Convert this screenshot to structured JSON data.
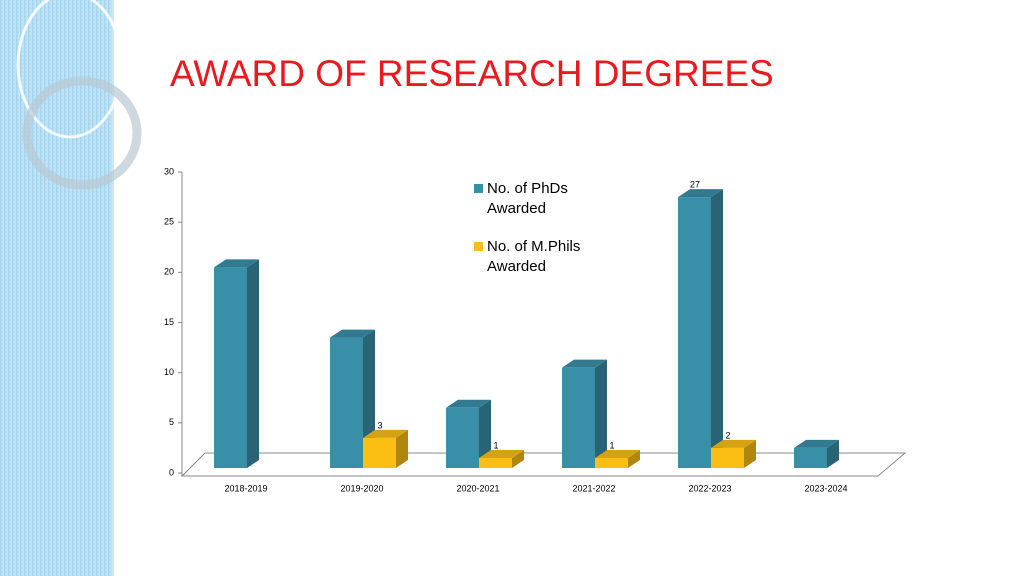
{
  "chart_data": {
    "type": "bar3d",
    "title": "AWARD OF RESEARCH DEGREES",
    "categories": [
      "2018-2019",
      "2019-2020",
      "2020-2021",
      "2021-2022",
      "2022-2023",
      "2023-2024"
    ],
    "series": [
      {
        "name": "No. of PhDs Awarded",
        "color": "#3a8fa8",
        "values": [
          20,
          13,
          6,
          10,
          27,
          2
        ],
        "value_labels": [
          null,
          null,
          null,
          null,
          "27",
          null
        ]
      },
      {
        "name": "No. of M.Phils Awarded",
        "color": "#fbbf14",
        "values": [
          null,
          3,
          1,
          1,
          2,
          null
        ],
        "value_labels": [
          null,
          "3",
          "1",
          "1",
          "2",
          null
        ]
      }
    ],
    "ylim": [
      0,
      30
    ],
    "yticks": [
      0,
      5,
      10,
      15,
      20,
      25,
      30
    ]
  }
}
